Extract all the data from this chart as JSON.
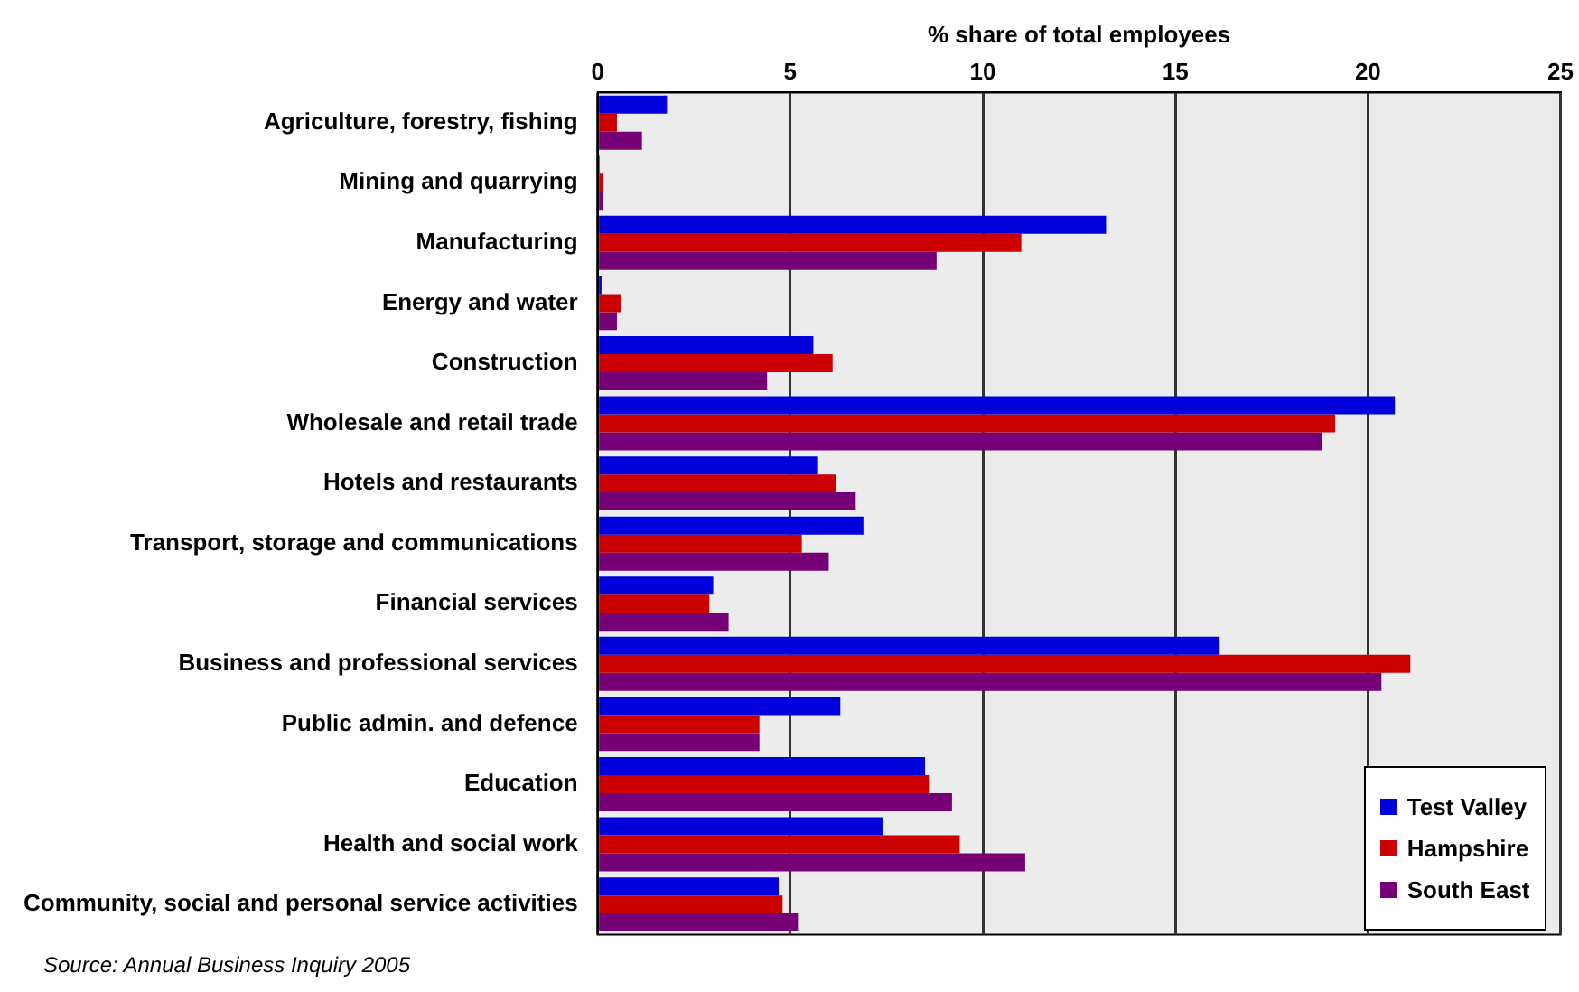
{
  "chart_data": {
    "type": "bar",
    "orientation": "horizontal",
    "xlabel": "% share of total employees",
    "categories": [
      "Agriculture, forestry, fishing",
      "Mining and quarrying",
      "Manufacturing",
      "Energy and water",
      "Construction",
      "Wholesale and retail trade",
      "Hotels and restaurants",
      "Transport, storage and communications",
      "Financial services",
      "Business and professional services",
      "Public admin. and defence",
      "Education",
      "Health and social work",
      "Community, social and personal service activities"
    ],
    "series": [
      {
        "name": "Test Valley",
        "color": "#0000dd",
        "values": [
          1.8,
          0.05,
          13.2,
          0.1,
          5.6,
          20.7,
          5.7,
          6.9,
          3.0,
          16.15,
          6.3,
          8.5,
          7.4,
          4.7
        ]
      },
      {
        "name": "Hampshire",
        "color": "#cc0000",
        "values": [
          0.5,
          0.15,
          11.0,
          0.6,
          6.1,
          19.15,
          6.2,
          5.3,
          2.9,
          21.1,
          4.2,
          8.6,
          9.4,
          4.8
        ]
      },
      {
        "name": "South East",
        "color": "#760076",
        "values": [
          1.15,
          0.15,
          8.8,
          0.5,
          4.4,
          18.8,
          6.7,
          6.0,
          3.4,
          20.35,
          4.2,
          9.2,
          11.1,
          5.2
        ]
      }
    ],
    "xlim": [
      0,
      25
    ],
    "xticks": [
      0,
      5,
      10,
      15,
      20,
      25
    ],
    "grid": "x",
    "legend": "bottom right",
    "annotations": [
      "Source: Annual Business Inquiry 2005"
    ]
  }
}
